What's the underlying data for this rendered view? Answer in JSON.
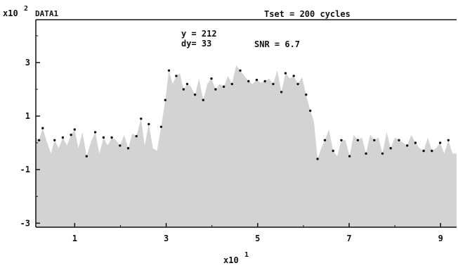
{
  "header": {
    "y_multiplier_base": "x10",
    "y_multiplier_exp": "2",
    "data_label": "DATA1",
    "tset_label": "Tset = 200 cycles"
  },
  "annotations": {
    "y_readout": "y = 212",
    "dy_readout": "dy= 33",
    "snr_readout": "SNR = 6.7"
  },
  "x_multiplier": {
    "base": "x10",
    "exp": "1"
  },
  "colors": {
    "fill": "#d3d3d3",
    "marker": "#111111",
    "axis": "#111111",
    "background": "#ffffff"
  },
  "chart_data": {
    "type": "area",
    "title": "DATA1",
    "subtitle": "Tset = 200 cycles",
    "xlabel": "x10^1",
    "ylabel": "x10^2",
    "xlim": [
      0.15,
      9.35
    ],
    "ylim": [
      -3.15,
      4.6
    ],
    "baseline": -3.15,
    "x_ticks": [
      1,
      3,
      5,
      7,
      9
    ],
    "x_tick_labels": [
      "1",
      "3",
      "5",
      "7",
      "9"
    ],
    "y_ticks": [
      -3,
      -1,
      1,
      3
    ],
    "y_tick_labels": [
      "-3",
      "-1",
      "1",
      "3"
    ],
    "grid": false,
    "legend": "none",
    "series": [
      {
        "x": [
          0.15,
          0.22,
          0.3,
          0.38,
          0.48,
          0.56,
          0.65,
          0.74,
          0.83,
          0.92,
          1.0,
          1.08,
          1.17,
          1.26,
          1.35,
          1.45,
          1.54,
          1.63,
          1.72,
          1.81,
          1.9,
          1.99,
          2.08,
          2.17,
          2.26,
          2.35,
          2.45,
          2.53,
          2.62,
          2.71,
          2.8,
          2.89,
          2.98,
          3.06,
          3.14,
          3.22,
          3.3,
          3.38,
          3.46,
          3.54,
          3.63,
          3.72,
          3.81,
          3.9,
          3.99,
          4.08,
          4.17,
          4.26,
          4.35,
          4.44,
          4.53,
          4.62,
          4.71,
          4.8,
          4.89,
          4.98,
          5.07,
          5.16,
          5.25,
          5.34,
          5.43,
          5.52,
          5.61,
          5.7,
          5.79,
          5.88,
          5.97,
          6.06,
          6.15,
          6.23,
          6.31,
          6.39,
          6.47,
          6.56,
          6.65,
          6.74,
          6.83,
          6.92,
          7.01,
          7.1,
          7.19,
          7.28,
          7.37,
          7.46,
          7.55,
          7.64,
          7.73,
          7.82,
          7.91,
          8.0,
          8.09,
          8.18,
          8.27,
          8.36,
          8.45,
          8.54,
          8.63,
          8.72,
          8.81,
          8.9,
          8.99,
          9.08,
          9.17,
          9.26,
          9.35
        ],
        "y": [
          0.2,
          0.1,
          0.55,
          0.1,
          -0.4,
          0.1,
          -0.2,
          0.2,
          -0.1,
          0.3,
          0.5,
          -0.2,
          0.4,
          -0.5,
          0.0,
          0.4,
          -0.4,
          0.2,
          -0.1,
          0.2,
          0.1,
          -0.1,
          0.3,
          -0.2,
          0.35,
          0.25,
          0.9,
          -0.1,
          0.7,
          -0.2,
          -0.3,
          0.6,
          1.6,
          2.7,
          2.2,
          2.5,
          2.6,
          2.0,
          2.2,
          2.1,
          1.8,
          2.4,
          1.6,
          2.2,
          2.4,
          2.0,
          2.2,
          2.1,
          2.5,
          2.2,
          2.9,
          2.7,
          2.5,
          2.3,
          2.2,
          2.35,
          2.25,
          2.3,
          2.4,
          2.2,
          2.7,
          1.9,
          2.6,
          2.4,
          2.5,
          2.2,
          2.45,
          1.8,
          1.2,
          0.8,
          -0.6,
          -0.2,
          0.1,
          0.5,
          -0.3,
          -0.5,
          0.1,
          0.1,
          -0.5,
          0.3,
          0.1,
          0.2,
          -0.4,
          0.3,
          0.1,
          0.2,
          -0.4,
          0.4,
          -0.2,
          0.2,
          0.1,
          0.0,
          -0.1,
          0.3,
          0.0,
          -0.2,
          -0.3,
          0.2,
          -0.3,
          -0.2,
          0.0,
          -0.4,
          0.1,
          -0.4,
          -0.4
        ],
        "marker_indices": [
          1,
          2,
          5,
          7,
          9,
          10,
          13,
          15,
          17,
          19,
          21,
          23,
          25,
          26,
          28,
          31,
          32,
          33,
          35,
          37,
          38,
          40,
          42,
          44,
          45,
          47,
          49,
          51,
          53,
          55,
          57,
          59,
          61,
          62,
          64,
          65,
          67,
          68,
          70,
          72,
          74,
          76,
          78,
          80,
          82,
          84,
          86,
          88,
          90,
          92,
          94,
          96,
          98,
          100,
          102
        ]
      }
    ]
  }
}
